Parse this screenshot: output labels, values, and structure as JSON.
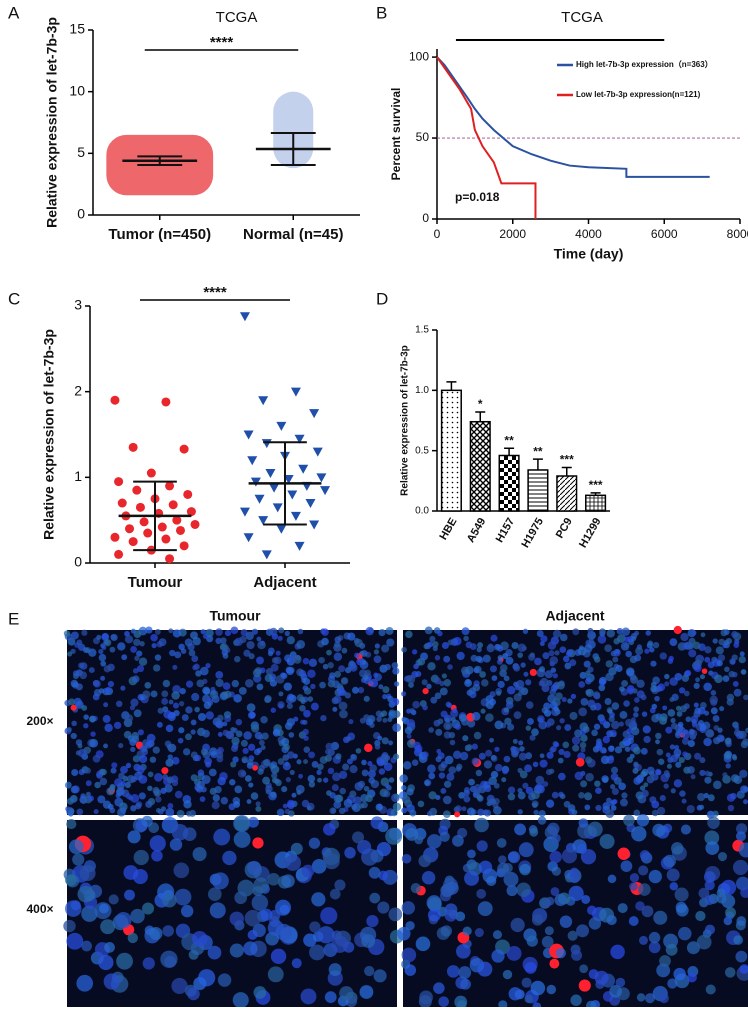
{
  "panel_labels": [
    "A",
    "B",
    "C",
    "D",
    "E"
  ],
  "chart_data": [
    {
      "type": "dotplot",
      "title": "TCGA",
      "ylabel": "Relative expression of let-7b-3p",
      "categories": [
        "Tumor (n=450)",
        "Normal (n=45)"
      ],
      "means": [
        4.4,
        5.35
      ],
      "sd": [
        0.35,
        1.3
      ],
      "ranges": [
        [
          1.6,
          6.5
        ],
        [
          3.8,
          10
        ]
      ],
      "colors": [
        "#e8343a",
        "#3a66c4"
      ],
      "markers": [
        "circle",
        "circle"
      ],
      "annotation": "****",
      "ylim": [
        0,
        15
      ],
      "yticks": [
        0,
        5,
        10,
        15
      ]
    },
    {
      "type": "line",
      "title": "TCGA",
      "xlabel": "Time (day)",
      "ylabel": "Percent survival",
      "series": [
        {
          "name": "High let-7b-3p expression（n=363）",
          "color": "#2a52a0",
          "x": [
            0,
            200,
            500,
            800,
            1000,
            1200,
            1500,
            2000,
            2500,
            3000,
            3500,
            4000,
            5000,
            5000,
            7200
          ],
          "values": [
            100,
            95,
            85,
            75,
            68,
            62,
            55,
            45,
            40,
            36,
            33,
            32,
            31,
            26,
            26
          ]
        },
        {
          "name": "Low let-7b-3p expression(n=121)",
          "color": "#e02020",
          "x": [
            0,
            300,
            600,
            900,
            1000,
            1200,
            1500,
            1700,
            2600,
            2600
          ],
          "values": [
            100,
            90,
            80,
            68,
            55,
            45,
            35,
            22,
            22,
            0
          ]
        }
      ],
      "hline": 50,
      "annotation": "p=0.018",
      "title_bar": [
        500,
        6000
      ],
      "xlim": [
        0,
        8000
      ],
      "xticks": [
        0,
        2000,
        4000,
        6000,
        8000
      ],
      "ylim": [
        0,
        105
      ],
      "yticks": [
        0,
        50,
        100
      ]
    },
    {
      "type": "dotplot",
      "ylabel": "Relative expression of let-7b-3p",
      "categories": [
        "Tumour",
        "Adjacent"
      ],
      "means": [
        0.55,
        0.93
      ],
      "sd": [
        0.4,
        0.48
      ],
      "points": [
        [
          1.9,
          1.88,
          1.35,
          1.33,
          1.05,
          0.95,
          0.9,
          0.85,
          0.8,
          0.75,
          0.7,
          0.68,
          0.65,
          0.6,
          0.58,
          0.55,
          0.5,
          0.48,
          0.45,
          0.42,
          0.4,
          0.38,
          0.35,
          0.3,
          0.28,
          0.25,
          0.2,
          0.15,
          0.1,
          0.05
        ],
        [
          2.88,
          2.0,
          1.9,
          1.75,
          1.6,
          1.5,
          1.45,
          1.4,
          1.3,
          1.25,
          1.2,
          1.1,
          1.05,
          1.0,
          0.98,
          0.95,
          0.9,
          0.88,
          0.85,
          0.8,
          0.75,
          0.7,
          0.65,
          0.6,
          0.55,
          0.5,
          0.45,
          0.4,
          0.3,
          0.2,
          0.1
        ]
      ],
      "colors": [
        "#e8262b",
        "#1f4fa8"
      ],
      "markers": [
        "circle",
        "triangle"
      ],
      "annotation": "****",
      "ylim": [
        0,
        3
      ],
      "yticks": [
        0,
        1,
        2,
        3
      ]
    },
    {
      "type": "bar",
      "ylabel": "Relative expression of let-7b-3p",
      "categories": [
        "HBE",
        "A549",
        "H157",
        "H1975",
        "PC9",
        "H1299"
      ],
      "values": [
        1.0,
        0.74,
        0.46,
        0.34,
        0.29,
        0.13
      ],
      "errors": [
        0.07,
        0.08,
        0.06,
        0.09,
        0.07,
        0.02
      ],
      "value_labels": [
        null,
        "*",
        "**",
        "**",
        "***",
        "***"
      ],
      "patterns": [
        "dots",
        "crosshatch",
        "checker",
        "hlines",
        "diagonal",
        "grid"
      ],
      "ylim": [
        0,
        1.5
      ],
      "yticks": [
        {
          "value": 0,
          "label": "0.0"
        },
        {
          "value": 0.5,
          "label": "0.5"
        },
        {
          "value": 1,
          "label": "1.0"
        },
        {
          "value": 1.5,
          "label": "1.5"
        }
      ]
    }
  ],
  "image_panel": {
    "columns": [
      "Tumour",
      "Adjacent"
    ],
    "rows": [
      "200×",
      "400×"
    ]
  }
}
